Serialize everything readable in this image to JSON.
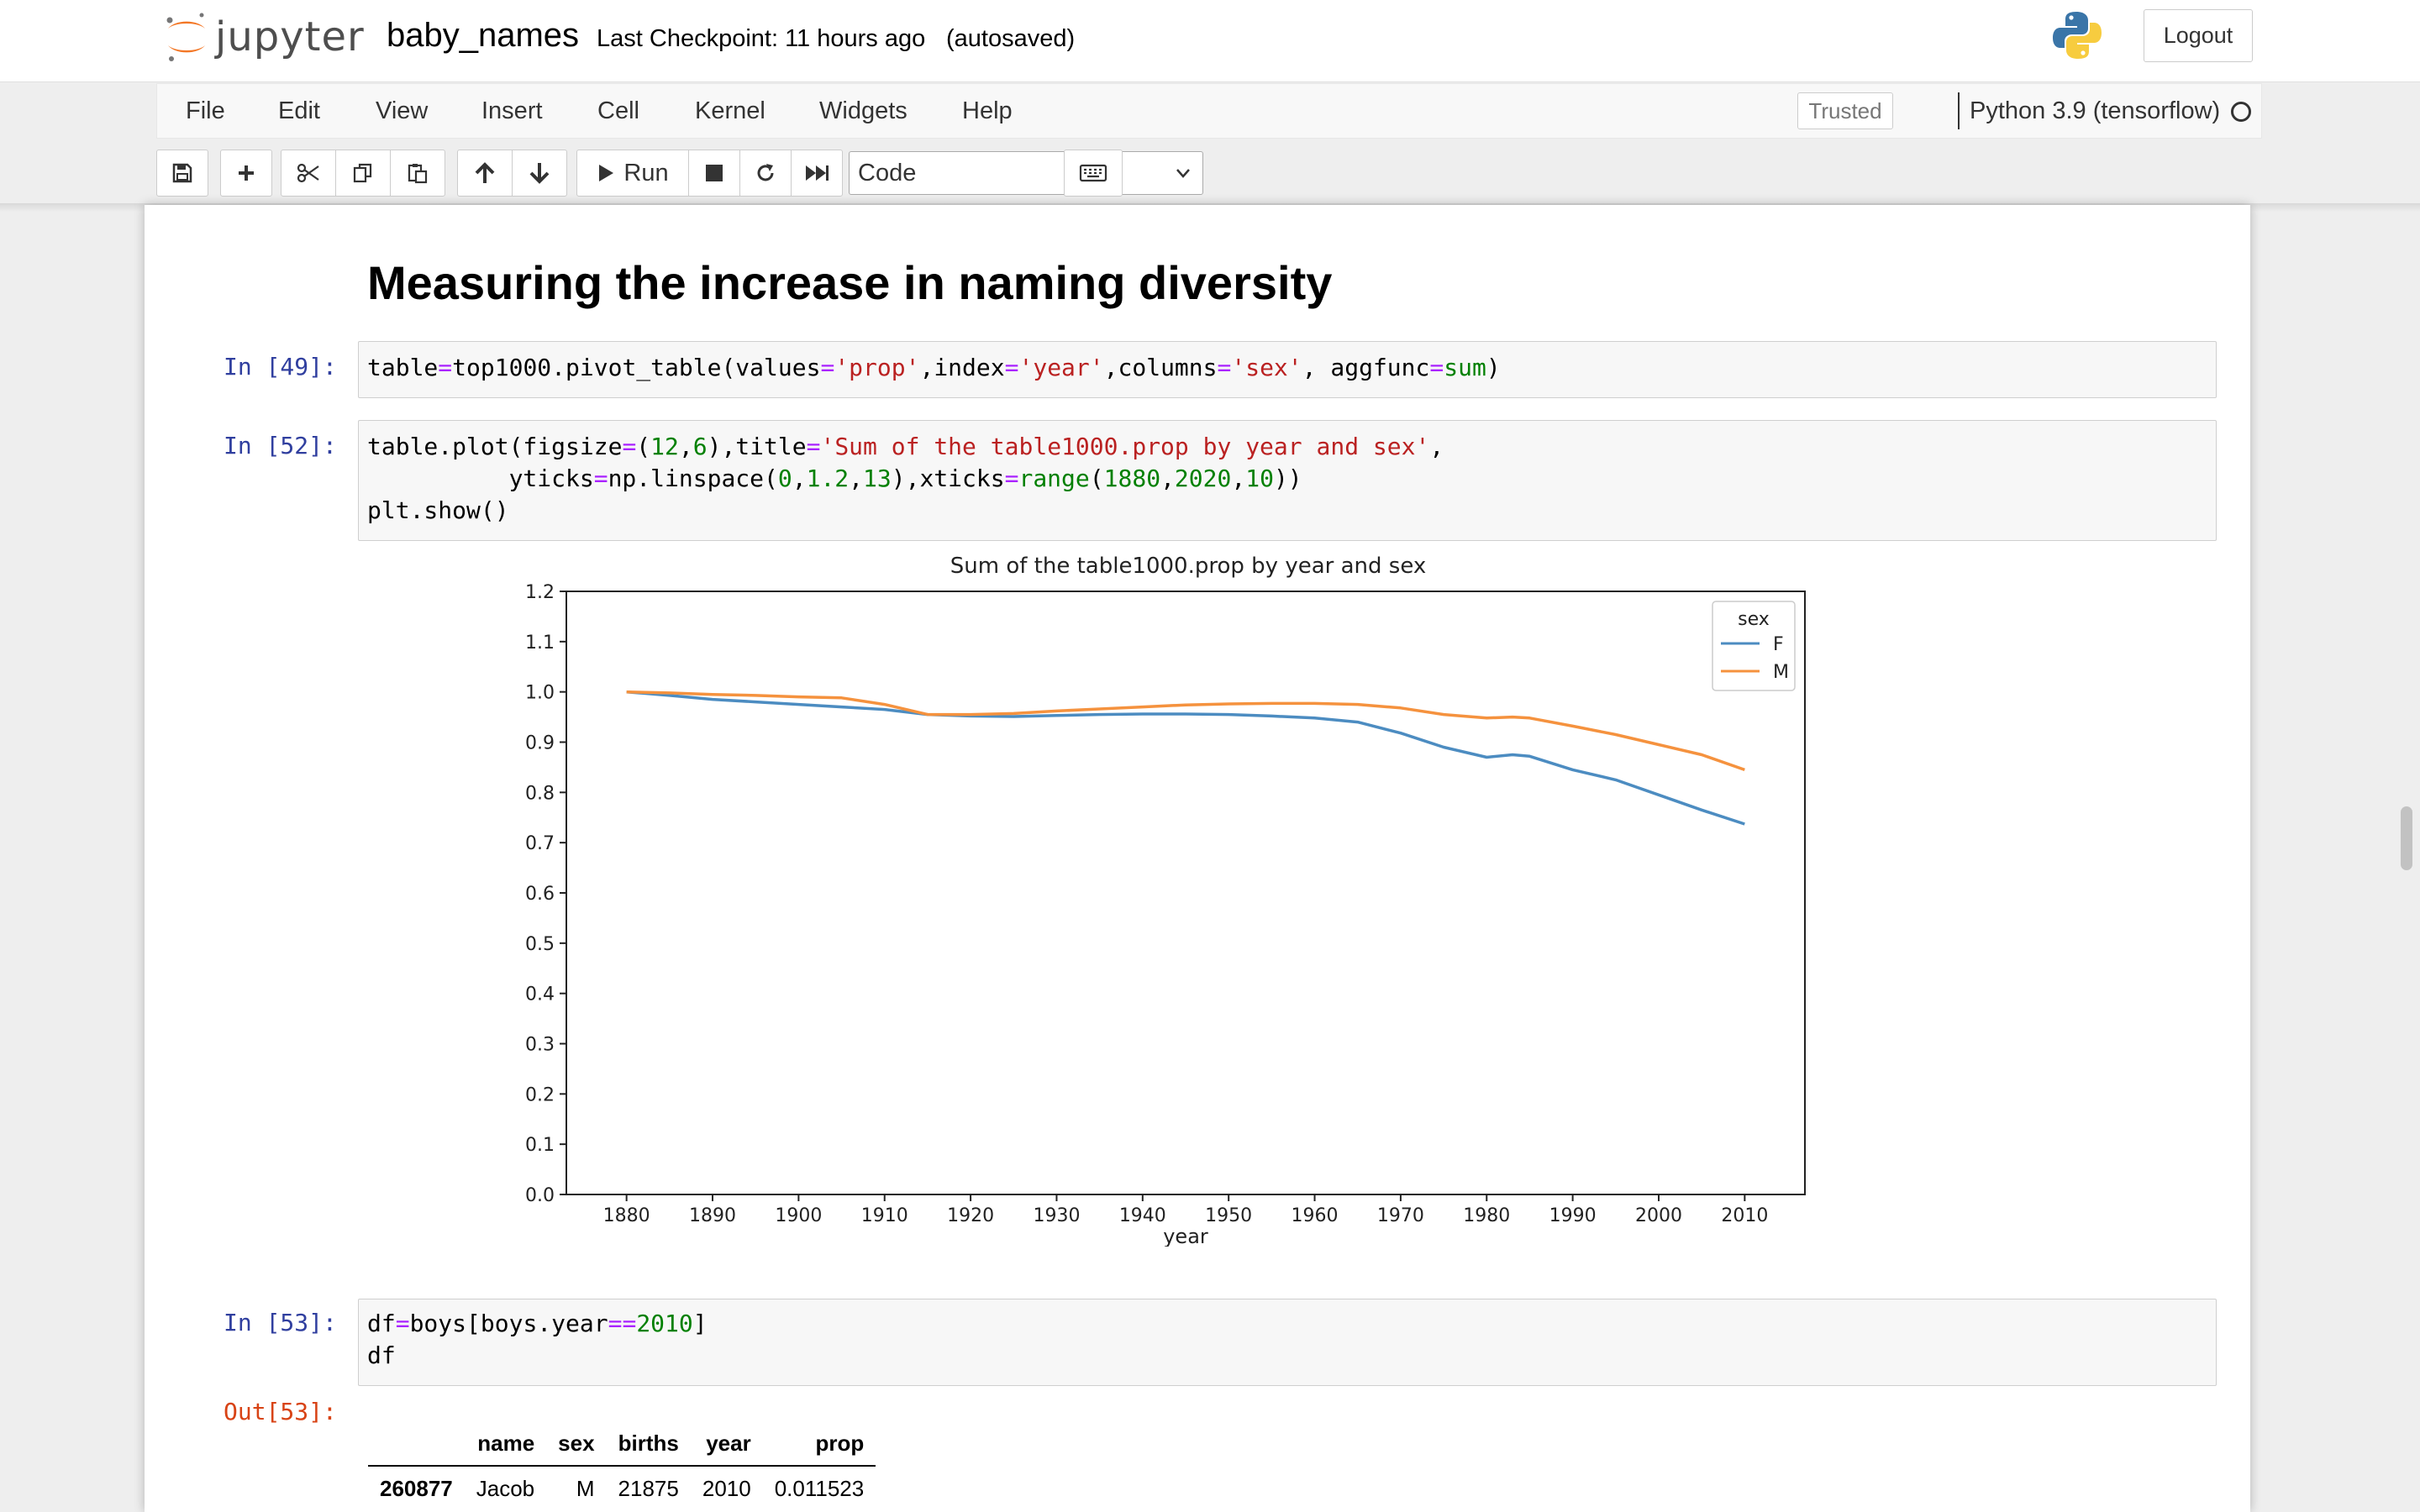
{
  "header": {
    "logo_text": "jupyter",
    "notebook_name": "baby_names",
    "checkpoint": "Last Checkpoint: 11 hours ago",
    "autosave": "(autosaved)",
    "logout_label": "Logout"
  },
  "menubar": {
    "items": [
      "File",
      "Edit",
      "View",
      "Insert",
      "Cell",
      "Kernel",
      "Widgets",
      "Help"
    ],
    "trusted": "Trusted",
    "kernel": "Python 3.9 (tensorflow)"
  },
  "toolbar": {
    "run_label": "Run",
    "cell_type": "Code"
  },
  "notebook": {
    "heading": "Measuring the increase in naming diversity",
    "cells": [
      {
        "prompt": "In [49]:"
      },
      {
        "prompt": "In [52]:"
      },
      {
        "prompt": "In [53]:"
      },
      {
        "prompt": "Out[53]:"
      }
    ],
    "cell49": {
      "line1": {
        "a": "table",
        "b": "=",
        "c": "top1000.pivot_table(values",
        "d": "=",
        "e": "'prop'",
        "f": ",index",
        "g": "=",
        "h": "'year'",
        "i": ",columns",
        "j": "=",
        "k": "'sex'",
        "l": ", aggfunc",
        "m": "=",
        "n": "sum",
        "o": ")"
      }
    },
    "cell52": {
      "line1": {
        "a": "table.plot(figsize",
        "b": "=",
        "c": "(",
        "d": "12",
        "e": ",",
        "f": "6",
        "g": "),title",
        "h": "=",
        "i": "'Sum of the table1000.prop by year and sex'",
        "j": ","
      },
      "line2": {
        "a": "          yticks",
        "b": "=",
        "c": "np.linspace(",
        "d": "0",
        "e": ",",
        "f": "1.2",
        "g": ",",
        "h": "13",
        "i": "),xticks",
        "j": "=",
        "k": "range",
        "l": "(",
        "m": "1880",
        "n": ",",
        "o": "2020",
        "p": ",",
        "q": "10",
        "r": "))"
      },
      "line3": "plt.show()"
    },
    "cell53": {
      "line1": {
        "a": "df",
        "b": "=",
        "c": "boys[boys.year",
        "d": "==",
        "e": "2010",
        "f": "]"
      },
      "line2": "df"
    },
    "table": {
      "columns": [
        "",
        "name",
        "sex",
        "births",
        "year",
        "prop"
      ],
      "rows": [
        {
          "index": "260877",
          "name": "Jacob",
          "sex": "M",
          "births": "21875",
          "year": "2010",
          "prop": "0.011523"
        }
      ]
    }
  },
  "chart_data": {
    "type": "line",
    "title": "Sum of the table1000.prop by year and sex",
    "xlabel": "year",
    "ylabel": "",
    "xlim": [
      1873,
      2017
    ],
    "ylim": [
      0,
      1.2
    ],
    "xticks": [
      1880,
      1890,
      1900,
      1910,
      1920,
      1930,
      1940,
      1950,
      1960,
      1970,
      1980,
      1990,
      2000,
      2010
    ],
    "yticks": [
      "0.0",
      "0.1",
      "0.2",
      "0.3",
      "0.4",
      "0.5",
      "0.6",
      "0.7",
      "0.8",
      "0.9",
      "1.0",
      "1.1",
      "1.2"
    ],
    "legend": {
      "title": "sex",
      "position": "top-right"
    },
    "x": [
      1880,
      1885,
      1890,
      1895,
      1900,
      1905,
      1910,
      1915,
      1920,
      1925,
      1930,
      1935,
      1940,
      1945,
      1950,
      1955,
      1960,
      1965,
      1970,
      1975,
      1980,
      1983,
      1985,
      1990,
      1995,
      2000,
      2005,
      2010
    ],
    "series": [
      {
        "name": "F",
        "color": "#4c8cc1",
        "values": [
          1.0,
          0.993,
          0.985,
          0.98,
          0.975,
          0.97,
          0.965,
          0.955,
          0.952,
          0.951,
          0.953,
          0.955,
          0.956,
          0.956,
          0.955,
          0.952,
          0.948,
          0.94,
          0.918,
          0.89,
          0.87,
          0.875,
          0.872,
          0.845,
          0.825,
          0.795,
          0.765,
          0.737
        ]
      },
      {
        "name": "M",
        "color": "#f5923e",
        "values": [
          1.0,
          0.998,
          0.995,
          0.993,
          0.99,
          0.988,
          0.975,
          0.955,
          0.955,
          0.957,
          0.962,
          0.966,
          0.97,
          0.974,
          0.976,
          0.977,
          0.977,
          0.975,
          0.968,
          0.955,
          0.948,
          0.95,
          0.948,
          0.932,
          0.915,
          0.895,
          0.875,
          0.845
        ]
      }
    ]
  }
}
